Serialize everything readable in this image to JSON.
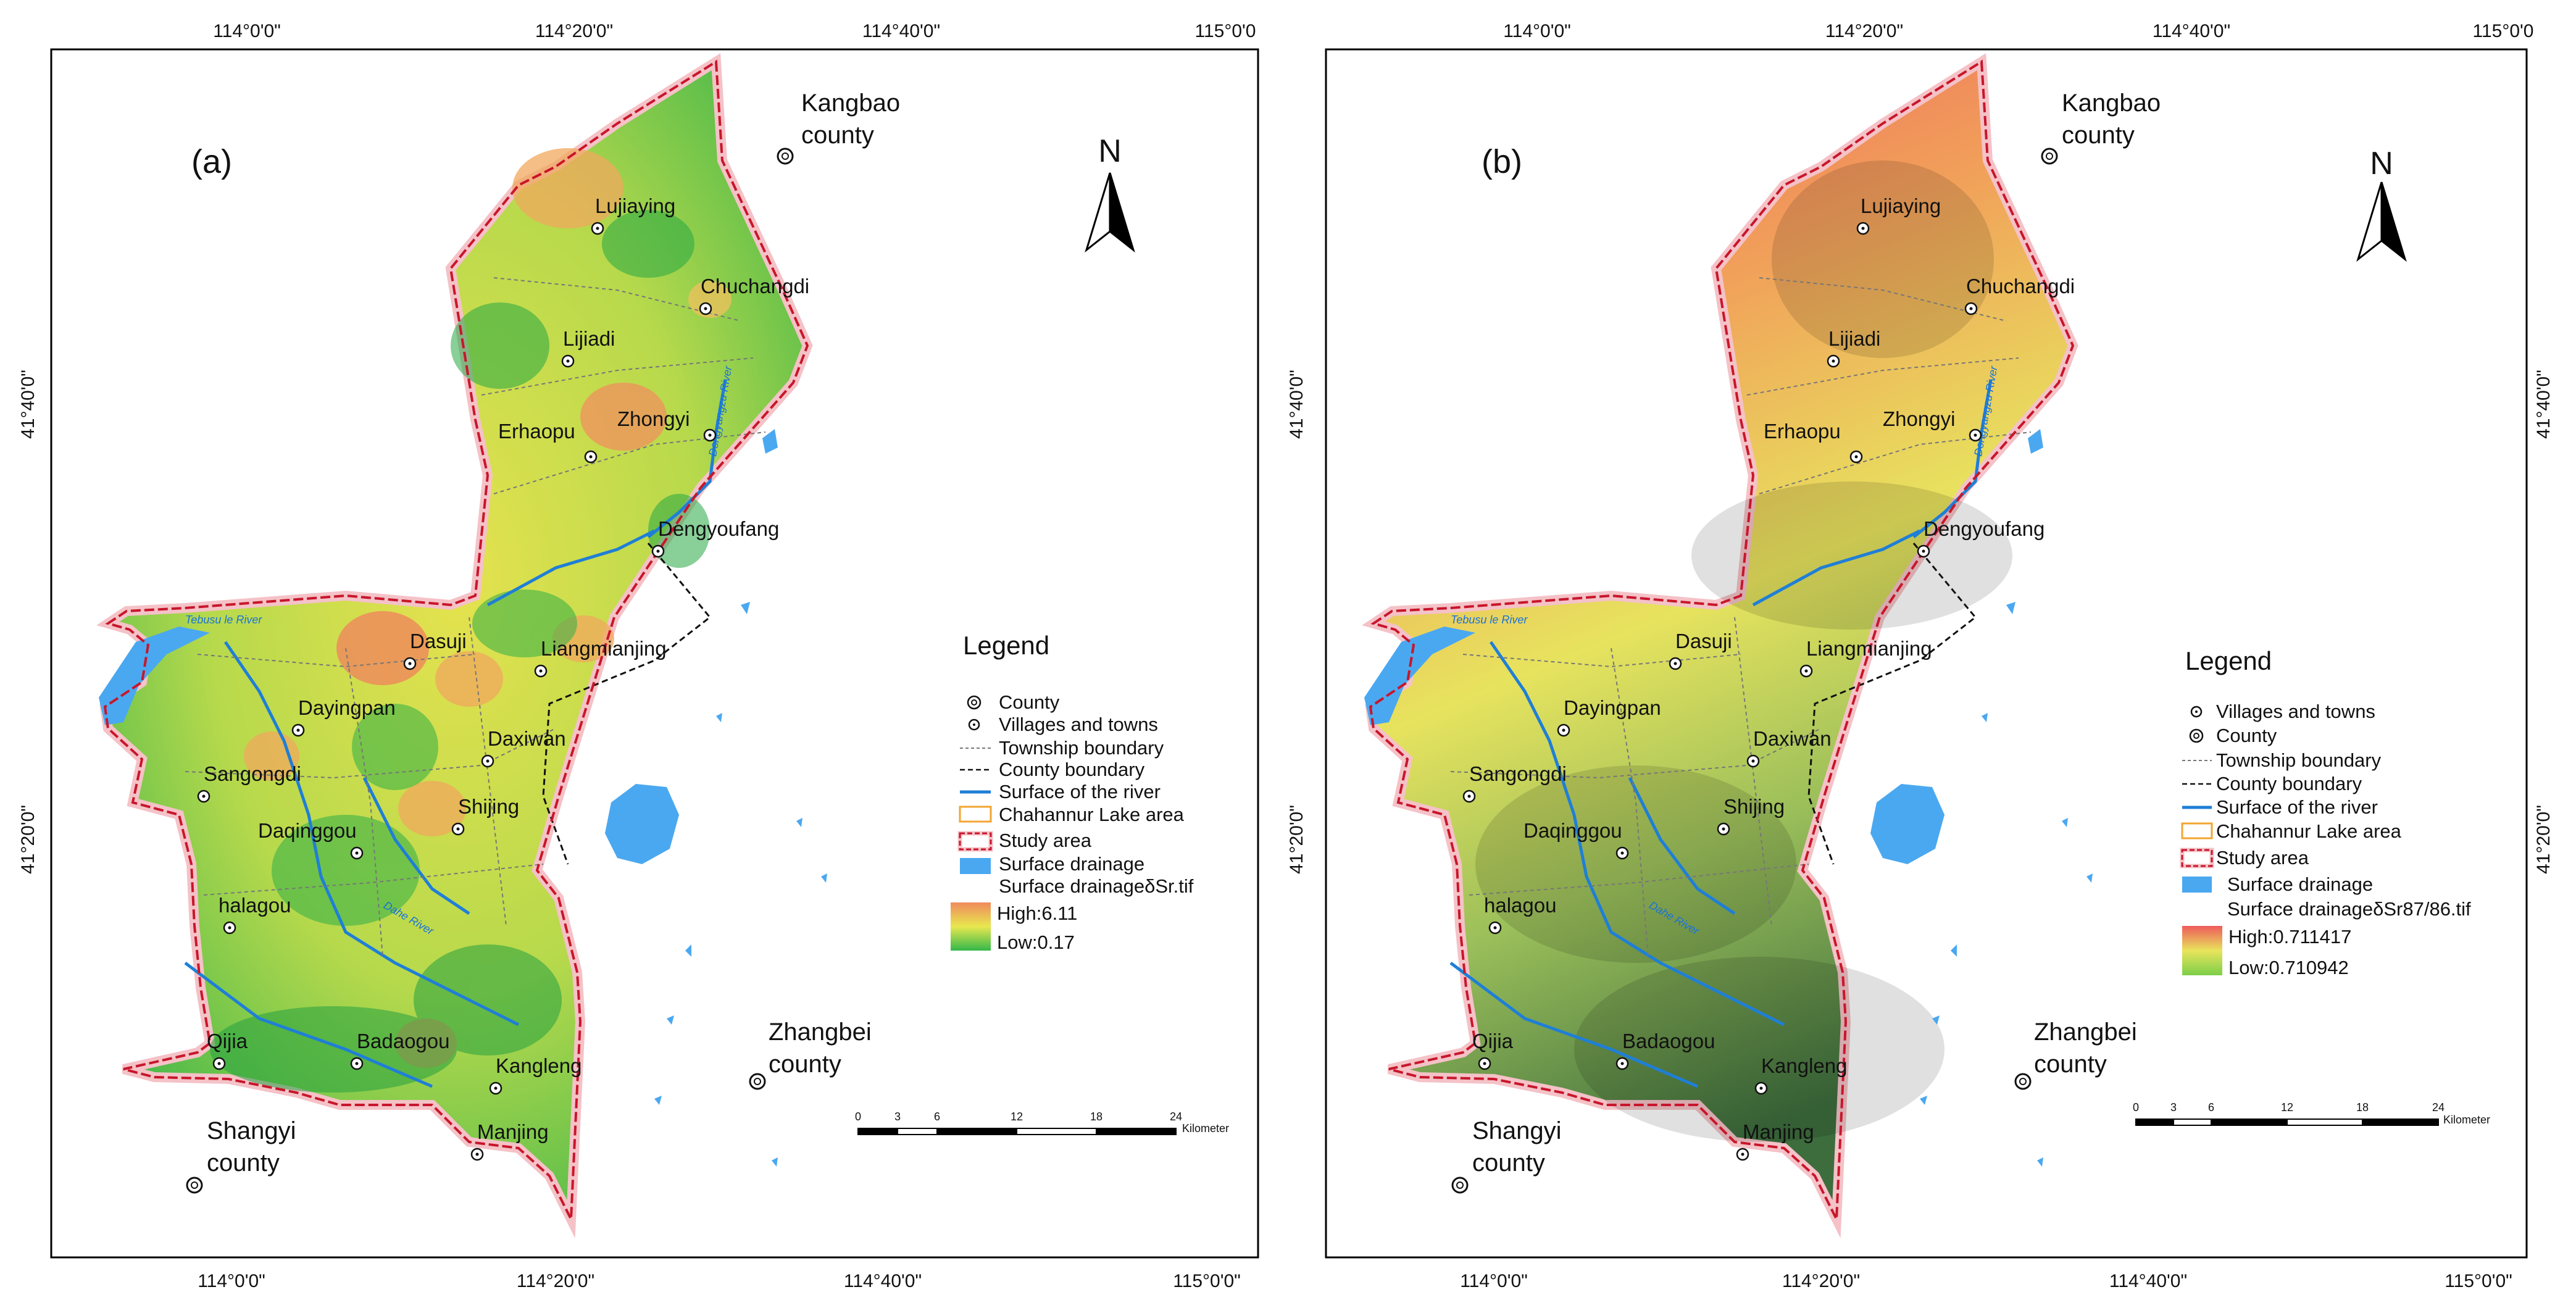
{
  "colors": {
    "lake": "#4aa8f0",
    "river": "#1f7fd6",
    "study_border": "#c8162b",
    "study_halo": "#f4c2c7",
    "lake_area": "#f2a531",
    "a_high": "#f08a5d",
    "a_mid": "#e8e84f",
    "a_low": "#33b84a",
    "b_high": "#ef5b5b",
    "b_mid": "#e8e45c",
    "b_low": "#3f7a3f"
  },
  "panels": [
    {
      "label": "(a)",
      "north": "N",
      "lon_ticks": [
        "114°0'0\"",
        "114°20'0\"",
        "114°40'0\"",
        "115°0'0"
      ],
      "lon_ticks_bottom": [
        "114°0'0\"",
        "114°20'0\"",
        "114°40'0\"",
        "115°0'0\""
      ],
      "lat_ticks": [
        "41°40'0\"",
        "41°20'0\""
      ],
      "counties": [
        {
          "line1": "Kangbao",
          "line2": "county"
        },
        {
          "line1": "Zhangbei",
          "line2": "county"
        },
        {
          "line1": "Shangyi",
          "line2": "county"
        }
      ],
      "towns": [
        "Lujiaying",
        "Chuchangdi",
        "Lijiadi",
        "Zhongyi",
        "Erhaopu",
        "Dengyoufang",
        "Dasuji",
        "Liangmianjing",
        "Dayingpan",
        "Daxiwan",
        "Sangongdi",
        "Shijing",
        "Daqinggou",
        "halagou",
        "Badaogou",
        "Qijia",
        "Kangleng",
        "Manjing"
      ],
      "legend": {
        "title": "Legend",
        "items": [
          "County",
          "Villages and towns",
          "Township boundary",
          "County boundary",
          "Surface of the river",
          "Chahannur Lake area",
          "Study area",
          "Surface drainage",
          "Surface drainageδSr.tif"
        ],
        "high": "High:6.11",
        "low": "Low:0.17"
      },
      "scale": {
        "ticks": [
          "0",
          "3",
          "6",
          "12",
          "18",
          "24"
        ],
        "unit": "Kilometer"
      }
    },
    {
      "label": "(b)",
      "north": "N",
      "lon_ticks": [
        "114°0'0\"",
        "114°20'0\"",
        "114°40'0\"",
        "115°0'0"
      ],
      "lon_ticks_bottom": [
        "114°0'0\"",
        "114°20'0\"",
        "114°40'0\"",
        "115°0'0\""
      ],
      "lat_ticks": [
        "41°40'0\"",
        "41°20'0\""
      ],
      "counties": [
        {
          "line1": "Kangbao",
          "line2": "county"
        },
        {
          "line1": "Zhangbei",
          "line2": "county"
        },
        {
          "line1": "Shangyi",
          "line2": "county"
        }
      ],
      "towns": [
        "Lujiaying",
        "Chuchangdi",
        "Lijiadi",
        "Zhongyi",
        "Erhaopu",
        "Dengyoufang",
        "Dasuji",
        "Liangmianjing",
        "Dayingpan",
        "Daxiwan",
        "Sangongdi",
        "Shijing",
        "Daqinggou",
        "halagou",
        "Badaogou",
        "Qijia",
        "Kangleng",
        "Manjing"
      ],
      "legend": {
        "title": "Legend",
        "items": [
          "Villages and towns",
          "County",
          "Township boundary",
          "County boundary",
          "Surface of the river",
          "Chahannur Lake area",
          "Study area",
          "Surface drainage",
          "Surface drainageδSr87/86.tif"
        ],
        "high": "High:0.711417",
        "low": "Low:0.710942"
      },
      "scale": {
        "ticks": [
          "0",
          "3",
          "6",
          "12",
          "18",
          "24"
        ],
        "unit": "Kilometer"
      }
    }
  ]
}
